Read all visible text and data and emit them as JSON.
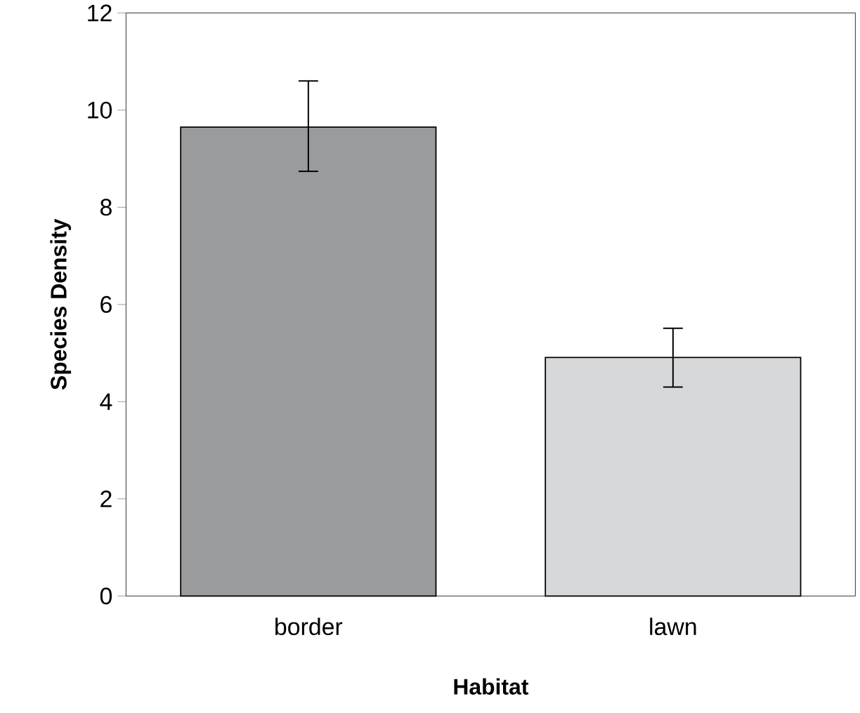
{
  "chart_data": {
    "type": "bar",
    "xlabel": "Habitat",
    "ylabel": "Species Density",
    "categories": [
      "border",
      "lawn"
    ],
    "values": [
      9.65,
      4.91
    ],
    "colors": [
      "#9a9b9d",
      "#d7d8da"
    ],
    "errors": [
      [
        8.74,
        10.6
      ],
      [
        4.3,
        5.51
      ]
    ],
    "ylim": [
      0,
      12
    ],
    "yticks": [
      0,
      2,
      4,
      6,
      8,
      10,
      12
    ],
    "grid": false
  }
}
